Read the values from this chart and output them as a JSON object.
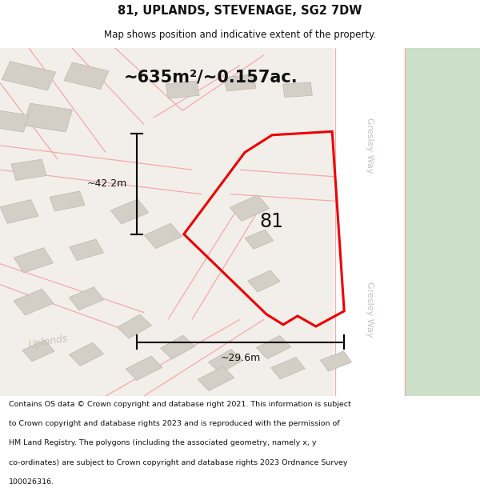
{
  "title_line1": "81, UPLANDS, STEVENAGE, SG2 7DW",
  "title_line2": "Map shows position and indicative extent of the property.",
  "area_text": "~635m²/~0.157ac.",
  "dim_vertical": "~42.2m",
  "dim_horizontal": "~29.6m",
  "label_81": "81",
  "area_name": "Uplands",
  "map_bg": "#f2efea",
  "road_fill": "#ffffff",
  "building_fill": "#d4cfc6",
  "building_stroke": "#bdb8ae",
  "road_stroke": "#f5a8a8",
  "plot_stroke": "#ee0000",
  "green_fill": "#ccdfc8",
  "text_color": "#111111",
  "street_color": "#c8c2b8",
  "footer_lines": [
    "Contains OS data © Crown copyright and database right 2021. This information is subject",
    "to Crown copyright and database rights 2023 and is reproduced with the permission of",
    "HM Land Registry. The polygons (including the associated geometry, namely x, y",
    "co-ordinates) are subject to Crown copyright and database rights 2023 Ordnance Survey",
    "100026316."
  ]
}
